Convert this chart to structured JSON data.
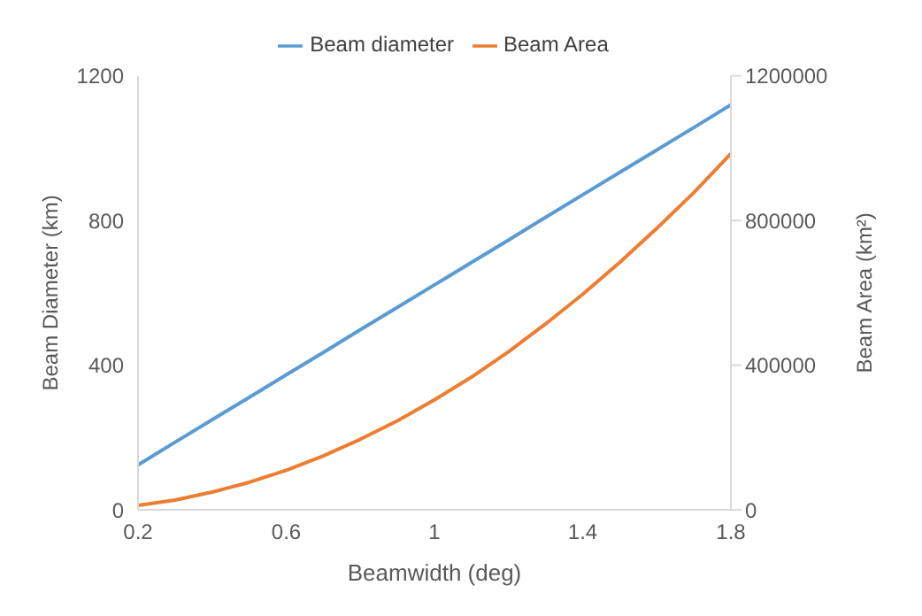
{
  "chart_data": {
    "type": "line",
    "xlabel": "Beamwidth (deg)",
    "ylabel": "Beam Diameter (km)",
    "y2label": "Beam Area (km²)",
    "x": [
      0.2,
      0.3,
      0.4,
      0.5,
      0.6,
      0.7,
      0.8,
      0.9,
      1.0,
      1.1,
      1.2,
      1.3,
      1.4,
      1.5,
      1.6,
      1.7,
      1.8
    ],
    "series": [
      {
        "name": "Beam diameter",
        "color": "#5b9bd5",
        "values": [
          124,
          187,
          249,
          311,
          373,
          435,
          498,
          560,
          622,
          684,
          746,
          809,
          871,
          933,
          995,
          1057,
          1120
        ]
      },
      {
        "name": "Beam Area",
        "color": "#ed7d31",
        "axis": "y2",
        "values": [
          12000,
          27000,
          49000,
          76000,
          109000,
          149000,
          195000,
          246000,
          304000,
          367000,
          437000,
          514000,
          596000,
          684000,
          778000,
          877000,
          985000
        ]
      }
    ],
    "xlim": [
      0.2,
      1.8
    ],
    "xticks": [
      0.2,
      0.6,
      1,
      1.4,
      1.8
    ],
    "ylim": [
      0,
      1200
    ],
    "yticks": [
      0,
      400,
      800,
      1200
    ],
    "y2lim": [
      0,
      1200000
    ],
    "y2ticks": [
      0,
      400000,
      800000,
      1200000
    ],
    "grid": false,
    "legend": "top",
    "marker": "none",
    "line_style": "solid"
  }
}
